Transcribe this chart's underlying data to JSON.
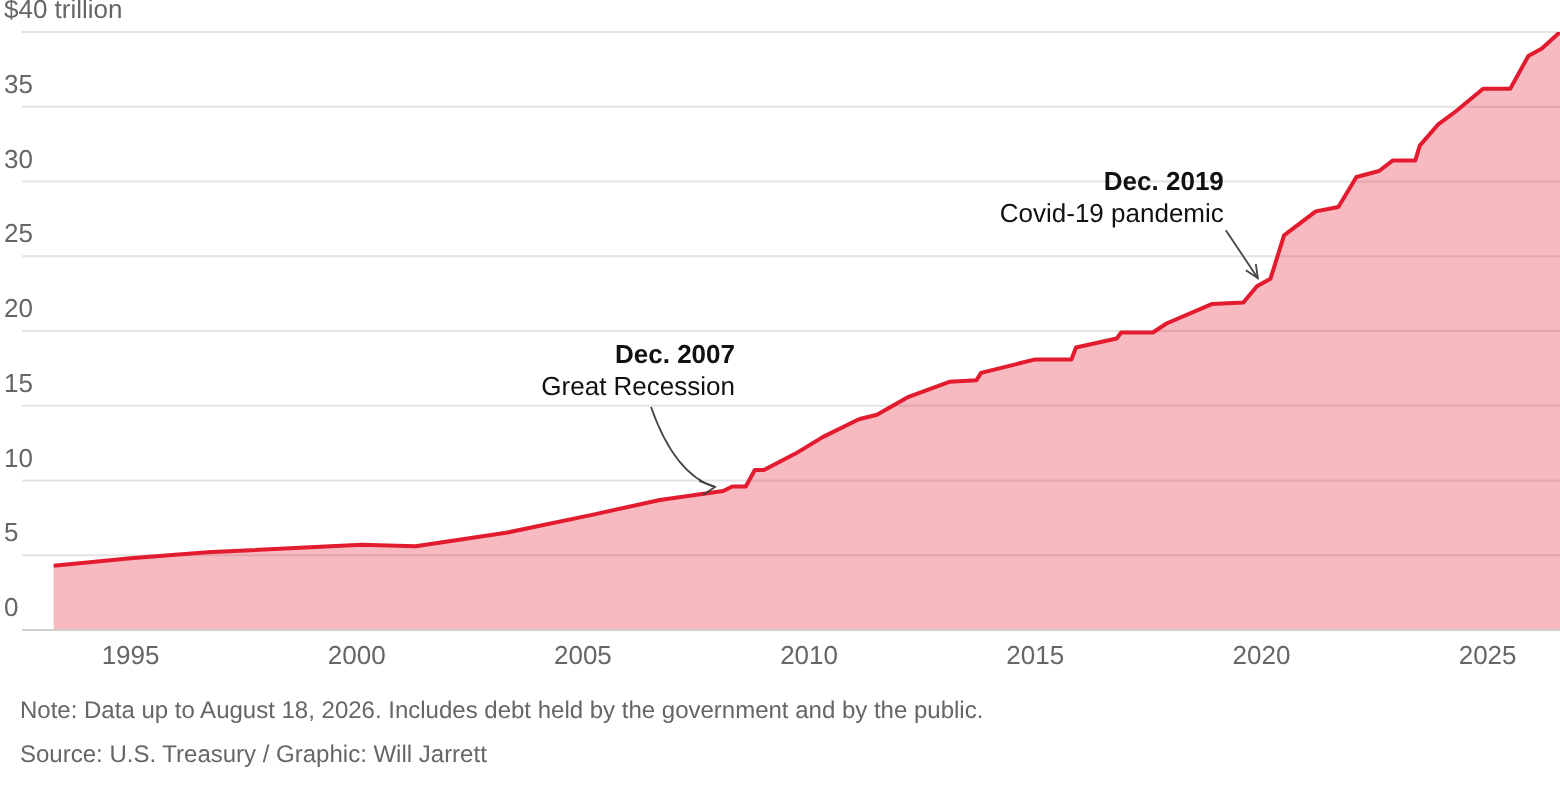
{
  "chart_data": {
    "type": "area",
    "x": [
      1993.3,
      1995,
      1996.7,
      2000.1,
      2001.3,
      2003.3,
      2005.2,
      2006.7,
      2008.1,
      2008.3,
      2008.6,
      2008.8,
      2009.0,
      2009.7,
      2010.3,
      2011.1,
      2011.5,
      2012.2,
      2013.1,
      2013.7,
      2013.8,
      2015.0,
      2015.8,
      2015.9,
      2016.8,
      2016.9,
      2017.6,
      2017.9,
      2018.9,
      2019.6,
      2019.9,
      2020.2,
      2020.5,
      2021.2,
      2021.7,
      2022.1,
      2022.6,
      2022.9,
      2023.4,
      2023.5,
      2023.9,
      2024.3,
      2024.9,
      2025.5,
      2025.9,
      2026.2,
      2026.6
    ],
    "series": [
      {
        "color": "#e31b2e",
        "values": [
          4.3,
          4.8,
          5.2,
          5.7,
          5.6,
          6.5,
          7.7,
          8.7,
          9.3,
          9.6,
          9.6,
          10.7,
          10.7,
          11.8,
          12.9,
          14.1,
          14.4,
          15.6,
          16.6,
          16.7,
          17.2,
          18.1,
          18.1,
          18.9,
          19.5,
          19.9,
          19.9,
          20.5,
          21.8,
          21.9,
          23.0,
          23.5,
          26.4,
          28.0,
          28.3,
          30.3,
          30.7,
          31.4,
          31.4,
          32.4,
          33.8,
          34.7,
          36.2,
          36.2,
          38.4,
          38.9,
          40.0
        ]
      }
    ],
    "xlim": [
      1992.6,
      2026.6
    ],
    "xticks": [
      1995,
      2000,
      2005,
      2010,
      2015,
      2020,
      2025
    ],
    "ylim": [
      0,
      40
    ],
    "yticks": [
      0,
      5,
      10,
      15,
      20,
      25,
      30,
      35,
      {
        "value": 40,
        "label": "$40 trillion"
      }
    ],
    "grid": "y",
    "annotations": [
      {
        "text": "Dec. 2007\nGreat Recession",
        "x": 2007.92,
        "y": 9.3
      },
      {
        "text": "Dec. 2019\nCovid-19 pandemic",
        "x": 2019.92,
        "y": 23.0
      },
      "Note: Data up to August 18, 2026. Includes debt held by the government and by the public.",
      "Source: U.S. Treasury / Graphic: Will Jarrett"
    ]
  }
}
